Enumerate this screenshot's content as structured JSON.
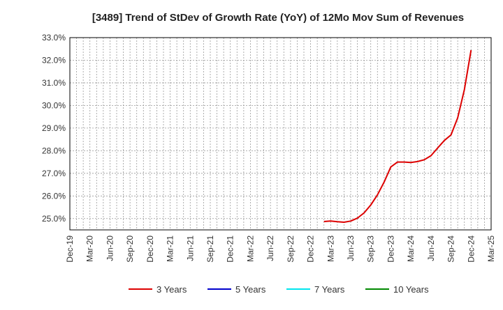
{
  "chart_data": {
    "type": "line",
    "title": "[3489]  Trend of StDev of Growth Rate (YoY) of 12Mo Mov Sum of Revenues",
    "xlabel": "",
    "ylabel": "",
    "ylim": [
      24.5,
      33.0
    ],
    "y_ticks": [
      25.0,
      26.0,
      27.0,
      28.0,
      29.0,
      30.0,
      31.0,
      32.0,
      33.0
    ],
    "y_tick_labels": [
      "25.0%",
      "26.0%",
      "27.0%",
      "28.0%",
      "29.0%",
      "30.0%",
      "31.0%",
      "32.0%",
      "33.0%"
    ],
    "x_tick_labels": [
      "Dec-19",
      "Mar-20",
      "Jun-20",
      "Sep-20",
      "Dec-20",
      "Mar-21",
      "Jun-21",
      "Sep-21",
      "Dec-21",
      "Mar-22",
      "Jun-22",
      "Sep-22",
      "Dec-22",
      "Mar-23",
      "Jun-23",
      "Sep-23",
      "Dec-23",
      "Mar-24",
      "Jun-24",
      "Sep-24",
      "Dec-24",
      "Mar-25"
    ],
    "x_start": "2019-12",
    "x_month_count": 63,
    "grid": true,
    "legend_position": "bottom",
    "series": [
      {
        "name": "3 Years",
        "color": "#dd0000",
        "x": [
          "2023-02",
          "2023-03",
          "2023-04",
          "2023-05",
          "2023-06",
          "2023-07",
          "2023-08",
          "2023-09",
          "2023-10",
          "2023-11",
          "2023-12",
          "2024-01",
          "2024-02",
          "2024-03",
          "2024-04",
          "2024-05",
          "2024-06",
          "2024-07",
          "2024-08",
          "2024-09",
          "2024-10",
          "2024-11",
          "2024-12"
        ],
        "values": [
          24.87,
          24.89,
          24.86,
          24.84,
          24.89,
          25.02,
          25.25,
          25.6,
          26.05,
          26.62,
          27.28,
          27.5,
          27.5,
          27.48,
          27.52,
          27.6,
          27.78,
          28.12,
          28.45,
          28.7,
          29.45,
          30.7,
          32.45
        ]
      },
      {
        "name": "5 Years",
        "color": "#0000cc",
        "x": [],
        "values": []
      },
      {
        "name": "7 Years",
        "color": "#00e5ee",
        "x": [],
        "values": []
      },
      {
        "name": "10 Years",
        "color": "#008800",
        "x": [],
        "values": []
      }
    ]
  }
}
